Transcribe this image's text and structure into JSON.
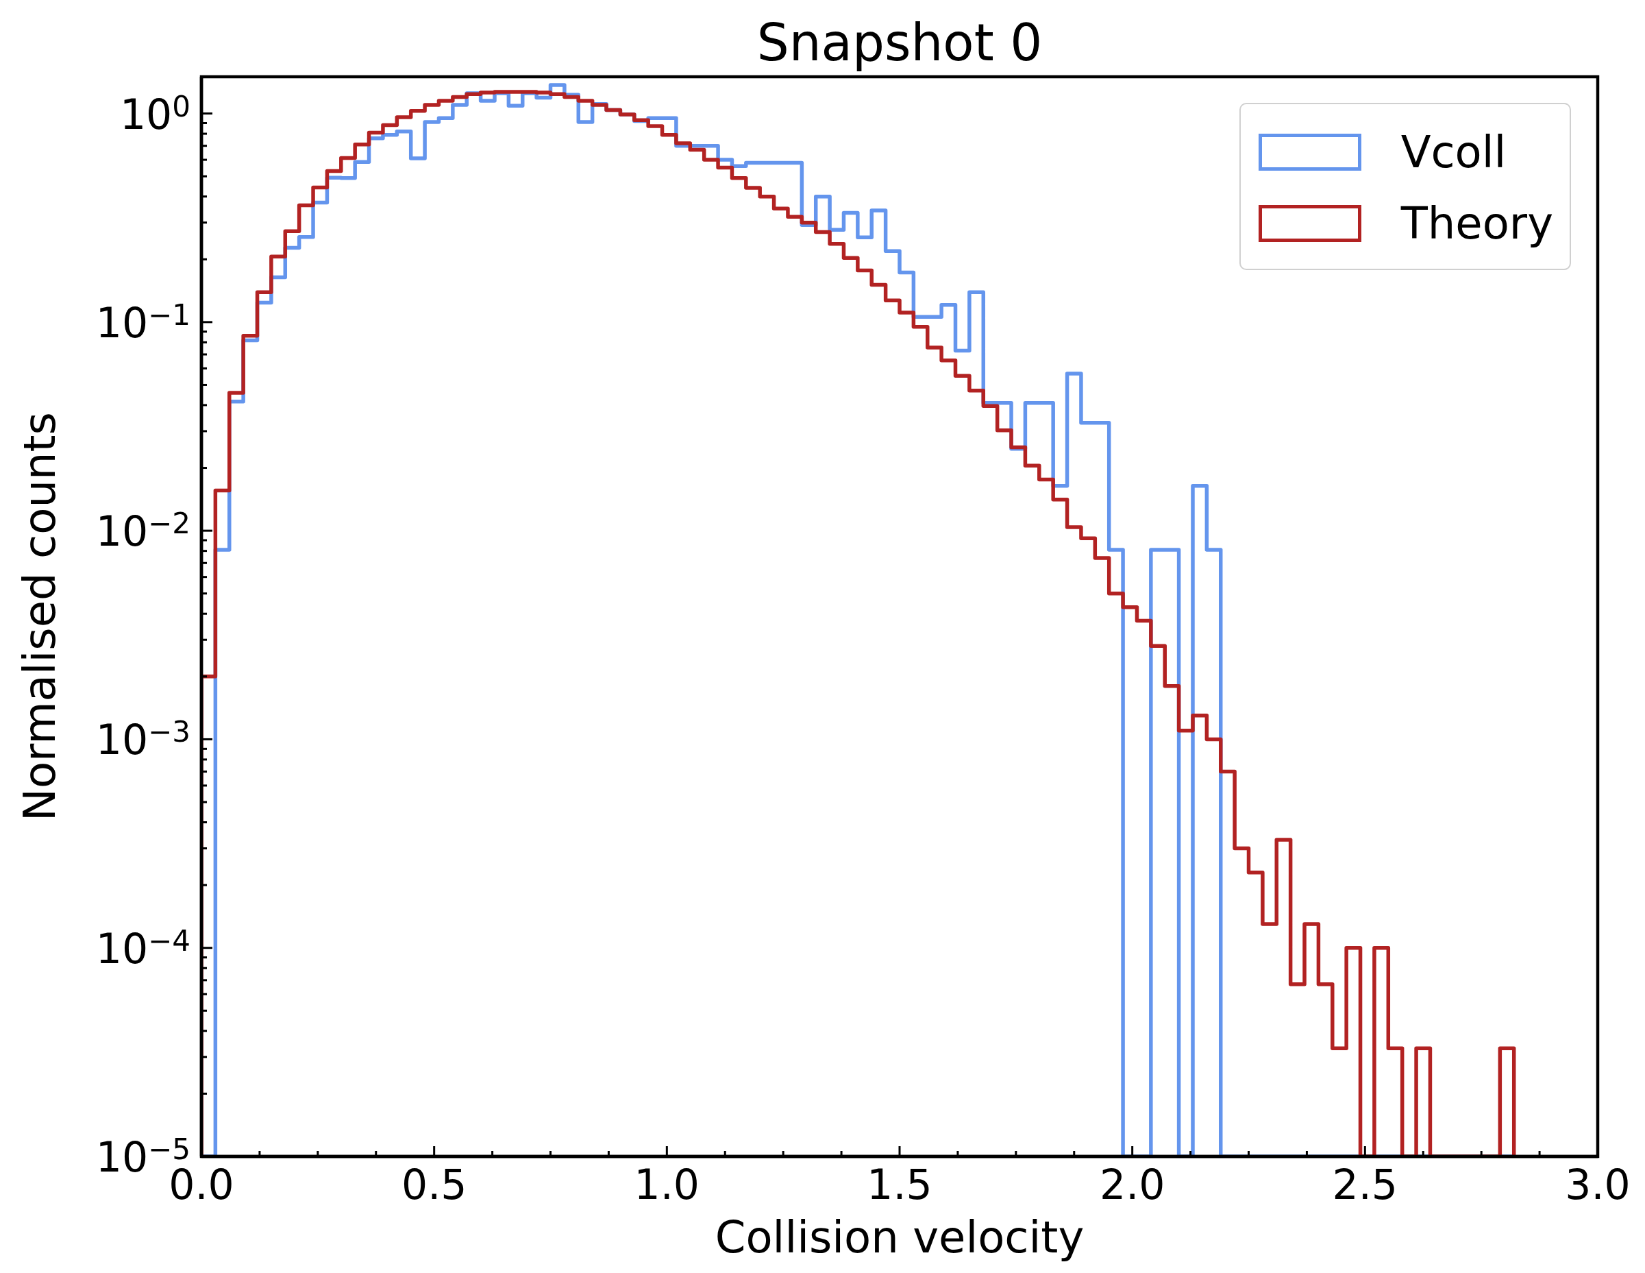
{
  "chart_data": {
    "type": "histogram",
    "title": "Snapshot 0",
    "xlabel": "Collision velocity",
    "ylabel": "Normalised counts",
    "bins": [
      0,
      0.03,
      0.06,
      0.09,
      0.12,
      0.15,
      0.18,
      0.21,
      0.24,
      0.27,
      0.3,
      0.33,
      0.36,
      0.39,
      0.42,
      0.45,
      0.48,
      0.51,
      0.54,
      0.57,
      0.6,
      0.63,
      0.66,
      0.69,
      0.72,
      0.75,
      0.78,
      0.81,
      0.84,
      0.87,
      0.9,
      0.93,
      0.96,
      0.99,
      1.02,
      1.05,
      1.08,
      1.11,
      1.14,
      1.17,
      1.2,
      1.23,
      1.26,
      1.29,
      1.32,
      1.35,
      1.38,
      1.41,
      1.44,
      1.47,
      1.5,
      1.53,
      1.56,
      1.59,
      1.62,
      1.65,
      1.68,
      1.71,
      1.74,
      1.77,
      1.8,
      1.83,
      1.86,
      1.89,
      1.92,
      1.95,
      1.98,
      2.01,
      2.04,
      2.07,
      2.1,
      2.13,
      2.16,
      2.19,
      2.22,
      2.25,
      2.28,
      2.31,
      2.34,
      2.37,
      2.4,
      2.43,
      2.46,
      2.49,
      2.52,
      2.55,
      2.58,
      2.61,
      2.64,
      2.67,
      2.7,
      2.73,
      2.76,
      2.79,
      2.82
    ],
    "series": [
      {
        "name": "Vcoll",
        "color": "#6495ed",
        "values": [
          null,
          0.0081,
          0.0416,
          0.0817,
          0.124,
          0.164,
          0.227,
          0.256,
          0.374,
          0.492,
          0.49,
          0.586,
          0.76,
          0.79,
          0.82,
          0.61,
          0.91,
          0.95,
          1.1,
          1.25,
          1.15,
          1.25,
          1.09,
          1.25,
          1.19,
          1.37,
          1.23,
          0.91,
          1.11,
          1.04,
          0.99,
          0.92,
          0.95,
          0.95,
          0.7,
          0.7,
          0.7,
          0.6,
          0.56,
          0.58,
          0.58,
          0.58,
          0.58,
          0.292,
          0.4,
          0.277,
          0.334,
          0.255,
          0.343,
          0.219,
          0.173,
          0.106,
          0.106,
          0.121,
          0.073,
          0.139,
          0.041,
          0.041,
          0.0247,
          0.041,
          0.041,
          0.0164,
          0.0566,
          0.0329,
          0.0329,
          0.0081,
          null,
          null,
          0.0081,
          0.0081,
          null,
          0.0164,
          0.0081,
          null,
          null,
          null,
          null,
          null,
          null,
          null,
          null,
          null,
          null,
          null,
          null,
          null,
          null,
          null,
          null,
          null,
          null,
          null,
          null,
          null
        ]
      },
      {
        "name": "Theory",
        "color": "#b22222",
        "values": [
          0.002,
          0.0156,
          0.0458,
          0.086,
          0.139,
          0.206,
          0.273,
          0.363,
          0.442,
          0.53,
          0.612,
          0.71,
          0.81,
          0.88,
          0.96,
          1.03,
          1.1,
          1.15,
          1.2,
          1.24,
          1.26,
          1.27,
          1.27,
          1.27,
          1.26,
          1.24,
          1.2,
          1.15,
          1.1,
          1.04,
          0.99,
          0.93,
          0.87,
          0.79,
          0.72,
          0.67,
          0.6,
          0.55,
          0.49,
          0.44,
          0.4,
          0.35,
          0.32,
          0.3,
          0.27,
          0.237,
          0.203,
          0.177,
          0.151,
          0.127,
          0.111,
          0.095,
          0.0755,
          0.0655,
          0.0553,
          0.047,
          0.0396,
          0.0303,
          0.0251,
          0.0205,
          0.0176,
          0.0141,
          0.0104,
          0.0092,
          0.0074,
          0.005,
          0.0043,
          0.0037,
          0.0028,
          0.0018,
          0.0011,
          0.0013,
          0.001,
          0.0007,
          0.0003,
          0.00023,
          0.00013,
          0.00033,
          6.7e-05,
          0.00013,
          6.7e-05,
          3.3e-05,
          0.0001,
          null,
          0.0001,
          3.3e-05,
          null,
          3.3e-05,
          null,
          null,
          null,
          null,
          null,
          3.3e-05
        ]
      }
    ],
    "xlim": [
      0,
      3
    ],
    "xticks": [
      {
        "value": 0,
        "label": "0.0"
      },
      {
        "value": 0.125,
        "label": null
      },
      {
        "value": 0.25,
        "label": null
      },
      {
        "value": 0.375,
        "label": null
      },
      {
        "value": 0.5,
        "label": "0.5"
      },
      {
        "value": 0.625,
        "label": null
      },
      {
        "value": 0.75,
        "label": null
      },
      {
        "value": 0.875,
        "label": null
      },
      {
        "value": 1,
        "label": "1.0"
      },
      {
        "value": 1.125,
        "label": null
      },
      {
        "value": 1.25,
        "label": null
      },
      {
        "value": 1.375,
        "label": null
      },
      {
        "value": 1.5,
        "label": "1.5"
      },
      {
        "value": 1.625,
        "label": null
      },
      {
        "value": 1.75,
        "label": null
      },
      {
        "value": 1.875,
        "label": null
      },
      {
        "value": 2,
        "label": "2.0"
      },
      {
        "value": 2.125,
        "label": null
      },
      {
        "value": 2.25,
        "label": null
      },
      {
        "value": 2.375,
        "label": null
      },
      {
        "value": 2.5,
        "label": "2.5"
      },
      {
        "value": 2.625,
        "label": null
      },
      {
        "value": 2.75,
        "label": null
      },
      {
        "value": 2.875,
        "label": null
      },
      {
        "value": 3,
        "label": "3.0"
      }
    ],
    "ylim": [
      1e-05,
      1.5
    ],
    "yticks": [
      {
        "value": 1e-05,
        "label": "10$^{−5}$"
      },
      {
        "value": 2e-05,
        "label": null
      },
      {
        "value": 3e-05,
        "label": null
      },
      {
        "value": 4e-05,
        "label": null
      },
      {
        "value": 5e-05,
        "label": null
      },
      {
        "value": 6e-05,
        "label": null
      },
      {
        "value": 7e-05,
        "label": null
      },
      {
        "value": 8e-05,
        "label": null
      },
      {
        "value": 9e-05,
        "label": null
      },
      {
        "value": 0.0001,
        "label": "10$^{−4}$"
      },
      {
        "value": 0.0002,
        "label": null
      },
      {
        "value": 0.0003,
        "label": null
      },
      {
        "value": 0.0004,
        "label": null
      },
      {
        "value": 0.0005,
        "label": null
      },
      {
        "value": 0.0006,
        "label": null
      },
      {
        "value": 0.0007,
        "label": null
      },
      {
        "value": 0.0008,
        "label": null
      },
      {
        "value": 0.0009,
        "label": null
      },
      {
        "value": 0.001,
        "label": "10$^{−3}$"
      },
      {
        "value": 0.002,
        "label": null
      },
      {
        "value": 0.003,
        "label": null
      },
      {
        "value": 0.004,
        "label": null
      },
      {
        "value": 0.005,
        "label": null
      },
      {
        "value": 0.006,
        "label": null
      },
      {
        "value": 0.007,
        "label": null
      },
      {
        "value": 0.008,
        "label": null
      },
      {
        "value": 0.009,
        "label": null
      },
      {
        "value": 0.01,
        "label": "10$^{−2}$"
      },
      {
        "value": 0.02,
        "label": null
      },
      {
        "value": 0.03,
        "label": null
      },
      {
        "value": 0.04,
        "label": null
      },
      {
        "value": 0.05,
        "label": null
      },
      {
        "value": 0.06,
        "label": null
      },
      {
        "value": 0.07,
        "label": null
      },
      {
        "value": 0.08,
        "label": null
      },
      {
        "value": 0.09,
        "label": null
      },
      {
        "value": 0.1,
        "label": "10$^{−1}$"
      },
      {
        "value": 0.2,
        "label": null
      },
      {
        "value": 0.3,
        "label": null
      },
      {
        "value": 0.4,
        "label": null
      },
      {
        "value": 0.5,
        "label": null
      },
      {
        "value": 0.6,
        "label": null
      },
      {
        "value": 0.7,
        "label": null
      },
      {
        "value": 0.8,
        "label": null
      },
      {
        "value": 0.9,
        "label": null
      },
      {
        "value": 1,
        "label": "10$^{0}$"
      }
    ],
    "log": true,
    "legend": "top right"
  }
}
